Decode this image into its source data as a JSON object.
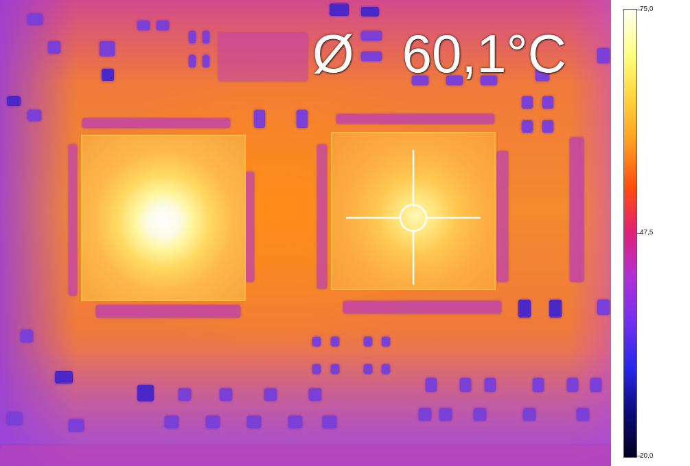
{
  "readout": {
    "symbol": "Ø",
    "value": "60,1°C"
  },
  "scale": {
    "max_label": "75,0",
    "mid_label": "47,5",
    "min_label": "20,0",
    "max_value": 75.0,
    "mid_value": 47.5,
    "min_value": 20.0,
    "unit": "°C",
    "palette": [
      "#fffff2",
      "#ffff80",
      "#ffd23a",
      "#ff9a22",
      "#ff4a10",
      "#e0207a",
      "#b030d8",
      "#7030f0",
      "#2828ea",
      "#0c0c7a",
      "#000020"
    ]
  },
  "icons": {
    "crosshair": "crosshair-icon"
  }
}
